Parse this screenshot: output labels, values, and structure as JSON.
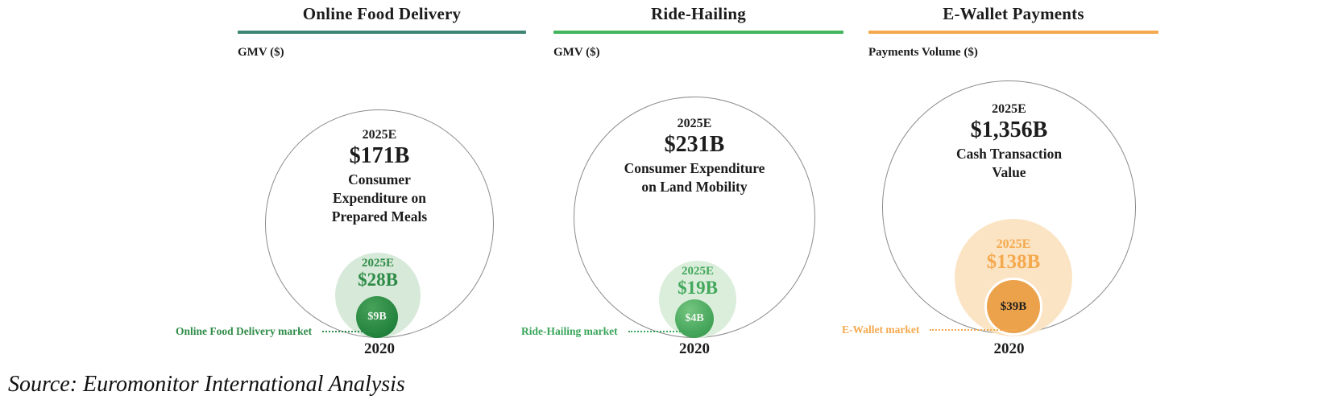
{
  "source_note": "Source: Euromonitor International Analysis",
  "colors": {
    "food_accent": "#3d8473",
    "ride_accent": "#41b45c",
    "wallet_accent": "#f5a94e",
    "food_green": "#2e8b47",
    "ride_green": "#3aa65a",
    "wallet_orange": "#f5a94e",
    "outer_circle_outline": "#8b8b8b"
  },
  "panels": [
    {
      "title": "Online Food Delivery",
      "axis_label": "GMV ($)",
      "outer": {
        "period": "2025E",
        "value": "$171B",
        "description": "Consumer\nExpenditure on\nPrepared Meals"
      },
      "mid": {
        "period": "2025E",
        "value": "$28B"
      },
      "inner": {
        "value": "$9B"
      },
      "market_label": "Online Food Delivery market",
      "year_axis": "2020"
    },
    {
      "title": "Ride-Hailing",
      "axis_label": "GMV ($)",
      "outer": {
        "period": "2025E",
        "value": "$231B",
        "description": "Consumer Expenditure\non Land Mobility"
      },
      "mid": {
        "period": "2025E",
        "value": "$19B"
      },
      "inner": {
        "value": "$4B"
      },
      "market_label": "Ride-Hailing market",
      "year_axis": "2020"
    },
    {
      "title": "E-Wallet Payments",
      "axis_label": "Payments Volume ($)",
      "outer": {
        "period": "2025E",
        "value": "$1,356B",
        "description": "Cash Transaction\nValue"
      },
      "mid": {
        "period": "2025E",
        "value": "$138B"
      },
      "inner": {
        "value": "$39B"
      },
      "market_label": "E-Wallet market",
      "year_axis": "2020"
    }
  ],
  "chart_data": {
    "type": "bubble",
    "subtype": "nested-proportional-area",
    "source": "Source: Euromonitor International Analysis",
    "panels": [
      {
        "category": "Online Food Delivery",
        "metric": "GMV ($)",
        "outer_bubble": {
          "period": "2025E",
          "value_usd_b": 171,
          "label": "Consumer Expenditure on Prepared Meals"
        },
        "mid_bubble": {
          "period": "2025E",
          "value_usd_b": 28,
          "label": "Online Food Delivery market"
        },
        "inner_bubble": {
          "period": "2020",
          "value_usd_b": 9,
          "label": "Online Food Delivery market"
        }
      },
      {
        "category": "Ride-Hailing",
        "metric": "GMV ($)",
        "outer_bubble": {
          "period": "2025E",
          "value_usd_b": 231,
          "label": "Consumer Expenditure on Land Mobility"
        },
        "mid_bubble": {
          "period": "2025E",
          "value_usd_b": 19,
          "label": "Ride-Hailing market"
        },
        "inner_bubble": {
          "period": "2020",
          "value_usd_b": 4,
          "label": "Ride-Hailing market"
        }
      },
      {
        "category": "E-Wallet Payments",
        "metric": "Payments Volume ($)",
        "outer_bubble": {
          "period": "2025E",
          "value_usd_b": 1356,
          "label": "Cash Transaction Value"
        },
        "mid_bubble": {
          "period": "2025E",
          "value_usd_b": 138,
          "label": "E-Wallet market"
        },
        "inner_bubble": {
          "period": "2020",
          "value_usd_b": 39,
          "label": "E-Wallet market"
        }
      }
    ]
  }
}
